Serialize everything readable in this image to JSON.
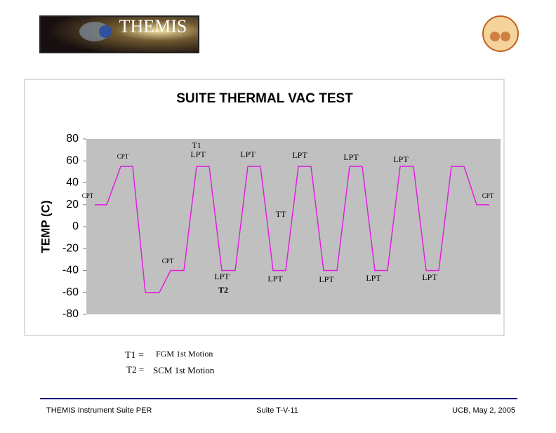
{
  "header": {
    "logo_text": "THEMIS"
  },
  "chart_data": {
    "type": "line",
    "title": "SUITE THERMAL VAC TEST",
    "y_label": "TEMP (C)",
    "x": [
      2.4,
      5.8,
      9.8,
      13.2,
      16.8,
      20.8,
      24,
      27.8,
      31.4,
      35,
      38.6,
      42.4,
      46,
      49.6,
      53.2,
      56.8,
      60.4,
      64,
      67.6,
      71.4,
      75,
      78.6,
      82.2,
      85.8,
      89.4,
      93.2,
      96.8,
      100.4,
      104,
      107.6,
      111.2,
      114.8
    ],
    "values": [
      20,
      20,
      55,
      55,
      -60,
      -60,
      -40,
      -40,
      55,
      55,
      -40,
      -40,
      55,
      55,
      -40,
      -40,
      55,
      55,
      -40,
      -40,
      55,
      55,
      -40,
      -40,
      55,
      55,
      -40,
      -40,
      55,
      55,
      20,
      20
    ],
    "color": "#e020e0",
    "xlim": [
      0,
      118
    ],
    "ylim": [
      -80,
      80
    ],
    "yticks": [
      -80,
      -60,
      -40,
      -20,
      0,
      20,
      40,
      60,
      80
    ],
    "annotations": [
      "CPT",
      "CPT",
      "T1",
      "LPT",
      "LPT",
      "LPT",
      "LPT",
      "LPT",
      "CPT",
      "TT",
      "CPT",
      "LPT",
      "T2",
      "LPT",
      "LPT",
      "LPT",
      "LPT"
    ]
  },
  "notes": [
    {
      "label": "T1 =",
      "text": "FGM 1st Motion"
    },
    {
      "label": "T2 =",
      "text": "SCM 1st Motion"
    }
  ],
  "footer": {
    "left": "THEMIS Instrument Suite PER",
    "center": "Suite T-V-11",
    "right": "UCB, May 2, 2005"
  }
}
